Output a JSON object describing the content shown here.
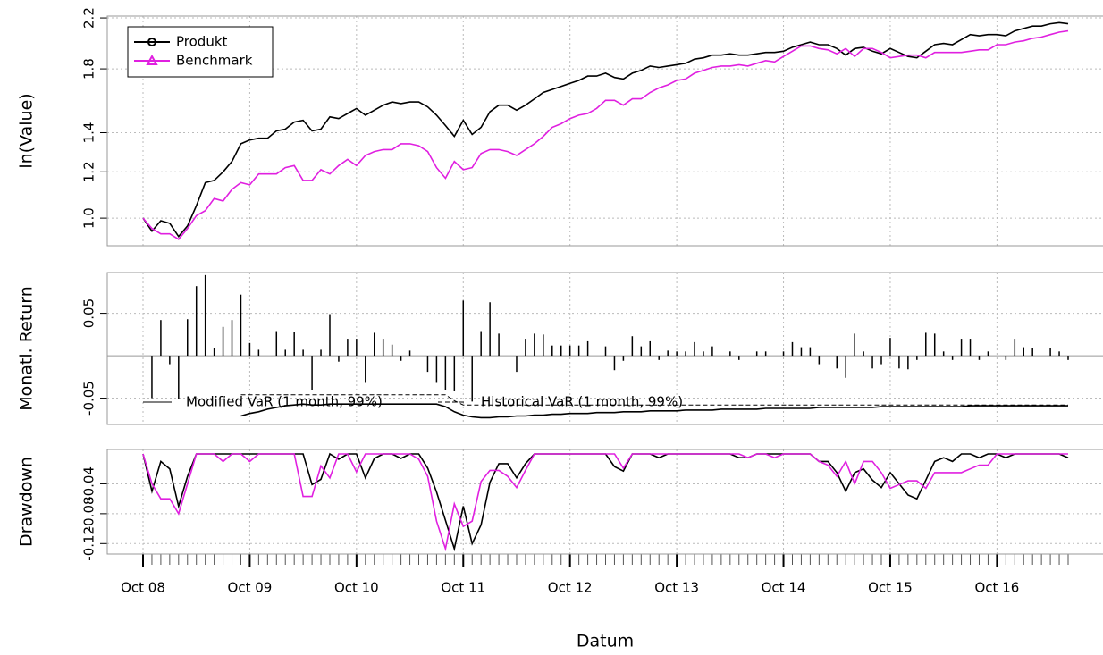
{
  "chart_data": {
    "type": "line",
    "xlabel": "Datum",
    "x": [
      "2008-10",
      "2008-11",
      "2008-12",
      "2009-01",
      "2009-02",
      "2009-03",
      "2009-04",
      "2009-05",
      "2009-06",
      "2009-07",
      "2009-08",
      "2009-09",
      "2009-10",
      "2009-11",
      "2009-12",
      "2010-01",
      "2010-02",
      "2010-03",
      "2010-04",
      "2010-05",
      "2010-06",
      "2010-07",
      "2010-08",
      "2010-09",
      "2010-10",
      "2010-11",
      "2010-12",
      "2011-01",
      "2011-02",
      "2011-03",
      "2011-04",
      "2011-05",
      "2011-06",
      "2011-07",
      "2011-08",
      "2011-09",
      "2011-10",
      "2011-11",
      "2011-12",
      "2012-01",
      "2012-02",
      "2012-03",
      "2012-04",
      "2012-05",
      "2012-06",
      "2012-07",
      "2012-08",
      "2012-09",
      "2012-10",
      "2012-11",
      "2012-12",
      "2013-01",
      "2013-02",
      "2013-03",
      "2013-04",
      "2013-05",
      "2013-06",
      "2013-07",
      "2013-08",
      "2013-09",
      "2013-10",
      "2013-11",
      "2013-12",
      "2014-01",
      "2014-02",
      "2014-03",
      "2014-04",
      "2014-05",
      "2014-06",
      "2014-07",
      "2014-08",
      "2014-09",
      "2014-10",
      "2014-11",
      "2014-12",
      "2015-01",
      "2015-02",
      "2015-03",
      "2015-04",
      "2015-05",
      "2015-06",
      "2015-07",
      "2015-08",
      "2015-09",
      "2015-10",
      "2015-11",
      "2015-12",
      "2016-01",
      "2016-02",
      "2016-03",
      "2016-04",
      "2016-05",
      "2016-06",
      "2016-07",
      "2016-08",
      "2016-09",
      "2016-10",
      "2016-11",
      "2016-12",
      "2017-01",
      "2017-02",
      "2017-03",
      "2017-04",
      "2017-05",
      "2017-06"
    ],
    "xticks": [
      {
        "value": "2008-10",
        "label": "Oct 08"
      },
      {
        "value": "2009-10",
        "label": "Oct 09"
      },
      {
        "value": "2010-10",
        "label": "Oct 10"
      },
      {
        "value": "2011-10",
        "label": "Oct 11"
      },
      {
        "value": "2012-10",
        "label": "Oct 12"
      },
      {
        "value": "2013-10",
        "label": "Oct 13"
      },
      {
        "value": "2014-10",
        "label": "Oct 14"
      },
      {
        "value": "2015-10",
        "label": "Oct 15"
      },
      {
        "value": "2016-10",
        "label": "Oct 16"
      }
    ],
    "grid": true,
    "panels": [
      {
        "type": "line",
        "ylabel": "ln(Value)",
        "log": true,
        "ylim": [
          0.897,
          2.216
        ],
        "yticks": [
          {
            "value": 1,
            "label": "1.0"
          },
          1.2,
          1.4,
          1.8,
          2.2
        ],
        "legend": "topleft",
        "series": [
          {
            "name": "Produkt",
            "color": "#000000",
            "marker": "circle",
            "values": [
              1.0,
              0.95,
              0.99,
              0.98,
              0.93,
              0.97,
              1.05,
              1.15,
              1.16,
              1.2,
              1.25,
              1.34,
              1.36,
              1.37,
              1.37,
              1.41,
              1.42,
              1.46,
              1.47,
              1.41,
              1.42,
              1.49,
              1.48,
              1.51,
              1.54,
              1.5,
              1.53,
              1.56,
              1.58,
              1.57,
              1.58,
              1.58,
              1.55,
              1.5,
              1.44,
              1.38,
              1.47,
              1.39,
              1.43,
              1.52,
              1.56,
              1.56,
              1.53,
              1.56,
              1.6,
              1.64,
              1.66,
              1.68,
              1.7,
              1.72,
              1.75,
              1.75,
              1.77,
              1.74,
              1.73,
              1.77,
              1.79,
              1.82,
              1.81,
              1.82,
              1.83,
              1.84,
              1.87,
              1.88,
              1.9,
              1.9,
              1.91,
              1.9,
              1.9,
              1.91,
              1.92,
              1.92,
              1.93,
              1.96,
              1.98,
              2.0,
              1.98,
              1.98,
              1.95,
              1.9,
              1.95,
              1.96,
              1.93,
              1.91,
              1.95,
              1.92,
              1.89,
              1.88,
              1.93,
              1.98,
              1.99,
              1.98,
              2.02,
              2.06,
              2.05,
              2.06,
              2.06,
              2.05,
              2.09,
              2.11,
              2.13,
              2.13,
              2.15,
              2.16,
              2.15
            ]
          },
          {
            "name": "Benchmark",
            "color": "#e020e0",
            "marker": "triangle",
            "values": [
              1.0,
              0.96,
              0.94,
              0.94,
              0.92,
              0.96,
              1.01,
              1.03,
              1.08,
              1.07,
              1.12,
              1.15,
              1.14,
              1.19,
              1.19,
              1.19,
              1.22,
              1.23,
              1.16,
              1.16,
              1.21,
              1.19,
              1.23,
              1.26,
              1.23,
              1.28,
              1.3,
              1.31,
              1.31,
              1.34,
              1.34,
              1.33,
              1.3,
              1.22,
              1.17,
              1.25,
              1.21,
              1.22,
              1.29,
              1.31,
              1.31,
              1.3,
              1.28,
              1.31,
              1.34,
              1.38,
              1.43,
              1.45,
              1.48,
              1.5,
              1.51,
              1.54,
              1.59,
              1.59,
              1.56,
              1.6,
              1.6,
              1.64,
              1.67,
              1.69,
              1.72,
              1.73,
              1.77,
              1.79,
              1.81,
              1.82,
              1.82,
              1.83,
              1.82,
              1.84,
              1.86,
              1.85,
              1.89,
              1.93,
              1.97,
              1.97,
              1.95,
              1.94,
              1.91,
              1.95,
              1.89,
              1.95,
              1.95,
              1.92,
              1.88,
              1.89,
              1.9,
              1.9,
              1.88,
              1.92,
              1.92,
              1.92,
              1.92,
              1.93,
              1.94,
              1.94,
              1.98,
              1.98,
              2.0,
              2.01,
              2.03,
              2.04,
              2.06,
              2.08,
              2.09
            ]
          }
        ]
      },
      {
        "type": "bar",
        "ylabel": "Monatl. Return",
        "ylim": [
          -0.081,
          0.098
        ],
        "yticks": [
          -0.05,
          0.05
        ],
        "legend": "bottomleft",
        "bars": {
          "color": "#000000",
          "values": [
            null,
            -0.05,
            0.042,
            -0.01,
            -0.051,
            0.043,
            0.082,
            0.095,
            0.009,
            0.034,
            0.042,
            0.072,
            0.015,
            0.007,
            0.0,
            0.029,
            0.007,
            0.028,
            0.007,
            -0.041,
            0.007,
            0.049,
            -0.007,
            0.02,
            0.02,
            -0.032,
            0.027,
            0.02,
            0.013,
            -0.006,
            0.006,
            0.0,
            -0.019,
            -0.032,
            -0.04,
            -0.042,
            0.065,
            -0.054,
            0.029,
            0.063,
            0.026,
            0.0,
            -0.019,
            0.02,
            0.026,
            0.025,
            0.012,
            0.012,
            0.012,
            0.012,
            0.017,
            0.0,
            0.011,
            -0.017,
            -0.006,
            0.023,
            0.011,
            0.017,
            -0.005,
            0.006,
            0.005,
            0.005,
            0.016,
            0.005,
            0.011,
            0.0,
            0.005,
            -0.005,
            0.0,
            0.005,
            0.005,
            0.0,
            0.005,
            0.016,
            0.01,
            0.01,
            -0.01,
            0.0,
            -0.015,
            -0.026,
            0.026,
            0.005,
            -0.015,
            -0.01,
            0.021,
            -0.015,
            -0.016,
            -0.005,
            0.027,
            0.026,
            0.005,
            -0.005,
            0.02,
            0.02,
            -0.005,
            0.005,
            0.0,
            -0.005,
            0.02,
            0.01,
            0.009,
            0.0,
            0.009,
            0.005,
            -0.005
          ]
        },
        "series": [
          {
            "name": "Modified VaR (1 month, 99%)",
            "color": "#000000",
            "dash": false,
            "values": [
              null,
              null,
              null,
              null,
              null,
              null,
              null,
              null,
              null,
              null,
              null,
              -0.071,
              -0.068,
              -0.066,
              -0.063,
              -0.061,
              -0.059,
              -0.058,
              -0.057,
              -0.058,
              -0.058,
              -0.057,
              -0.057,
              -0.057,
              -0.057,
              -0.057,
              -0.057,
              -0.057,
              -0.057,
              -0.057,
              -0.057,
              -0.057,
              -0.057,
              -0.057,
              -0.06,
              -0.066,
              -0.07,
              -0.072,
              -0.073,
              -0.073,
              -0.072,
              -0.072,
              -0.071,
              -0.071,
              -0.07,
              -0.07,
              -0.069,
              -0.069,
              -0.068,
              -0.068,
              -0.068,
              -0.067,
              -0.067,
              -0.067,
              -0.066,
              -0.066,
              -0.066,
              -0.065,
              -0.065,
              -0.065,
              -0.065,
              -0.064,
              -0.064,
              -0.064,
              -0.064,
              -0.063,
              -0.063,
              -0.063,
              -0.063,
              -0.063,
              -0.062,
              -0.062,
              -0.062,
              -0.062,
              -0.062,
              -0.062,
              -0.061,
              -0.061,
              -0.061,
              -0.061,
              -0.061,
              -0.061,
              -0.061,
              -0.06,
              -0.06,
              -0.06,
              -0.06,
              -0.06,
              -0.06,
              -0.06,
              -0.06,
              -0.06,
              -0.06,
              -0.059,
              -0.059,
              -0.059,
              -0.059,
              -0.059,
              -0.059,
              -0.059,
              -0.059,
              -0.059,
              -0.059,
              -0.059,
              -0.059
            ]
          },
          {
            "name": "Historical VaR (1 month, 99%)",
            "color": "#000000",
            "dash": true,
            "values": [
              null,
              null,
              null,
              null,
              null,
              null,
              null,
              null,
              null,
              null,
              null,
              -0.046,
              -0.046,
              -0.046,
              -0.046,
              -0.046,
              -0.046,
              -0.046,
              -0.046,
              -0.046,
              -0.046,
              -0.046,
              -0.046,
              -0.046,
              -0.046,
              -0.046,
              -0.046,
              -0.046,
              -0.046,
              -0.046,
              -0.046,
              -0.046,
              -0.046,
              -0.046,
              -0.046,
              -0.053,
              -0.058,
              -0.058,
              -0.058,
              -0.058,
              -0.058,
              -0.058,
              -0.058,
              -0.058,
              -0.058,
              -0.058,
              -0.058,
              -0.058,
              -0.058,
              -0.058,
              -0.058,
              -0.058,
              -0.058,
              -0.058,
              -0.058,
              -0.058,
              -0.058,
              -0.058,
              -0.058,
              -0.058,
              -0.058,
              -0.058,
              -0.058,
              -0.058,
              -0.058,
              -0.058,
              -0.058,
              -0.058,
              -0.058,
              -0.058,
              -0.058,
              -0.058,
              -0.058,
              -0.058,
              -0.058,
              -0.058,
              -0.058,
              -0.058,
              -0.058,
              -0.058,
              -0.058,
              -0.058,
              -0.058,
              -0.058,
              -0.058,
              -0.058,
              -0.058,
              -0.058,
              -0.058,
              -0.058,
              -0.058,
              -0.058,
              -0.058,
              -0.058,
              -0.058,
              -0.058,
              -0.058,
              -0.058,
              -0.058,
              -0.058,
              -0.058,
              -0.058,
              -0.058,
              -0.058,
              -0.058
            ]
          }
        ]
      },
      {
        "type": "line",
        "ylabel": "Drawdown",
        "ylim": [
          -0.134,
          0.006
        ],
        "yticks": [
          -0.12,
          -0.08,
          -0.04
        ],
        "series": [
          {
            "name": "Produkt",
            "color": "#000000",
            "values": [
              0,
              -0.05,
              -0.01,
              -0.02,
              -0.07,
              -0.03,
              0,
              0,
              0,
              0,
              0,
              0,
              0,
              0,
              0,
              0,
              0,
              0,
              0,
              -0.041,
              -0.034,
              0,
              -0.007,
              0,
              0,
              -0.032,
              -0.006,
              0,
              0,
              -0.006,
              0,
              0,
              -0.019,
              -0.051,
              -0.089,
              -0.127,
              -0.07,
              -0.12,
              -0.095,
              -0.038,
              -0.013,
              -0.013,
              -0.032,
              -0.013,
              0,
              0,
              0,
              0,
              0,
              0,
              0,
              0,
              0,
              -0.017,
              -0.023,
              0,
              0,
              0,
              -0.005,
              0,
              0,
              0,
              0,
              0,
              0,
              0,
              0,
              -0.005,
              -0.005,
              0,
              0,
              0,
              0,
              0,
              0,
              0,
              -0.01,
              -0.01,
              -0.025,
              -0.05,
              -0.025,
              -0.02,
              -0.035,
              -0.045,
              -0.025,
              -0.04,
              -0.055,
              -0.06,
              -0.035,
              -0.01,
              -0.005,
              -0.01,
              0,
              0,
              -0.005,
              0,
              0,
              -0.005,
              0,
              0,
              0,
              0,
              0,
              0,
              -0.005
            ]
          },
          {
            "name": "Benchmark",
            "color": "#e020e0",
            "values": [
              0,
              -0.04,
              -0.06,
              -0.06,
              -0.08,
              -0.04,
              0,
              0,
              0,
              -0.01,
              0,
              0,
              -0.01,
              0,
              0,
              0,
              0,
              0,
              -0.057,
              -0.057,
              -0.016,
              -0.032,
              0,
              0,
              -0.024,
              0,
              0,
              0,
              0,
              0,
              0,
              -0.007,
              -0.03,
              -0.09,
              -0.127,
              -0.067,
              -0.097,
              -0.09,
              -0.037,
              -0.022,
              -0.022,
              -0.03,
              -0.045,
              -0.022,
              0,
              0,
              0,
              0,
              0,
              0,
              0,
              0,
              0,
              0,
              -0.019,
              0,
              0,
              0,
              0,
              0,
              0,
              0,
              0,
              0,
              0,
              0,
              0,
              0,
              -0.005,
              0,
              0,
              -0.005,
              0,
              0,
              0,
              0,
              -0.01,
              -0.015,
              -0.03,
              -0.01,
              -0.04,
              -0.01,
              -0.01,
              -0.025,
              -0.046,
              -0.041,
              -0.036,
              -0.036,
              -0.046,
              -0.025,
              -0.025,
              -0.025,
              -0.025,
              -0.02,
              -0.015,
              -0.015,
              0,
              0,
              0,
              0,
              0,
              0,
              0,
              0,
              0
            ]
          }
        ]
      }
    ]
  }
}
